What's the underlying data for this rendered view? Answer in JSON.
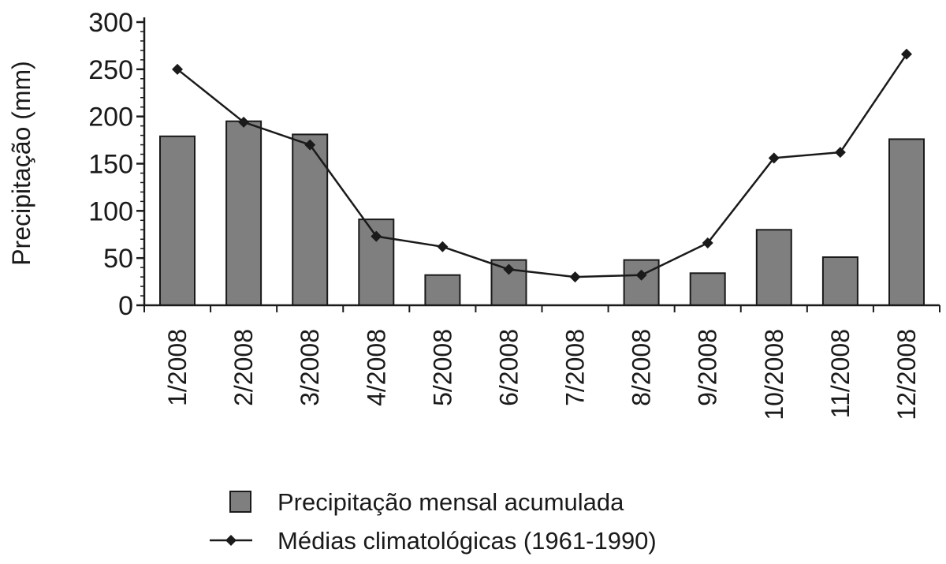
{
  "chart_data": {
    "type": "bar",
    "title": "",
    "xlabel": "",
    "ylabel": "Precipitação (mm)",
    "ylim": [
      0,
      300
    ],
    "yticks": [
      "0",
      "50",
      "100",
      "150",
      "200",
      "250",
      "300"
    ],
    "categories": [
      "1/2008",
      "2/2008",
      "3/2008",
      "4/2008",
      "5/2008",
      "6/2008",
      "7/2008",
      "8/2008",
      "9/2008",
      "10/2008",
      "11/2008",
      "12/2008"
    ],
    "series": [
      {
        "name": "Precipitação mensal acumulada",
        "kind": "bar",
        "color": "#7f7f7f",
        "values": [
          179,
          195,
          181,
          91,
          32,
          48,
          0,
          48,
          34,
          80,
          51,
          176
        ]
      },
      {
        "name": "Médias climatológicas (1961-1990)",
        "kind": "line",
        "color": "#1a1a1a",
        "marker": "diamond",
        "values": [
          250,
          194,
          170,
          73,
          62,
          38,
          30,
          32,
          66,
          156,
          162,
          266
        ]
      }
    ],
    "legend_position": "bottom-center",
    "grid": false
  }
}
